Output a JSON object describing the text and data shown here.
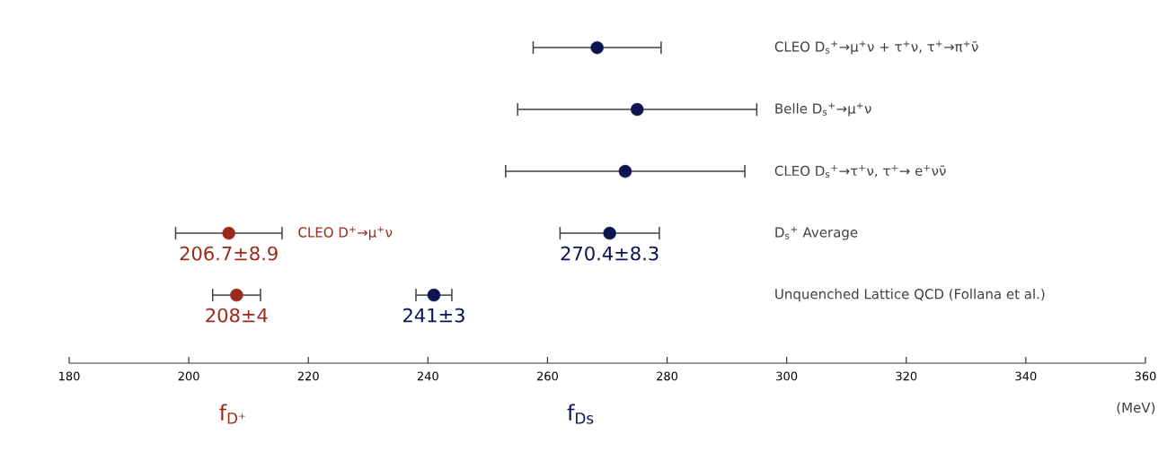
{
  "chart_data": {
    "type": "scatter",
    "orientation": "horizontal",
    "marker": "circle",
    "categories": [
      "CLEO D$_{s}$$^{+}$→μ$^{+}$ν + τ$^{+}$ν, τ$^{+}$→π$^{+}$ν̄",
      "Belle D$_{s}$$^{+}$→μ$^{+}$ν",
      "CLEO D$_{s}$$^{+}$→τ$^{+}$ν, τ$^{+}$→ e$^{+}$νν̄",
      "D$_{s}$$^{+}$ Average",
      "Unquenched Lattice QCD (Follana et al.)"
    ],
    "series": [
      {
        "name": "f$_{D⁺}$",
        "color": "#9a2a1b",
        "values": [
          null,
          null,
          null,
          206.7,
          208
        ],
        "errors": [
          null,
          null,
          null,
          8.9,
          4
        ],
        "value_labels": [
          null,
          null,
          null,
          "206.7±8.9",
          "208±4"
        ]
      },
      {
        "name": "f$_{Ds}$",
        "color": "#0d1450",
        "values": [
          268.3,
          275,
          273,
          270.4,
          241
        ],
        "errors": [
          10.7,
          20,
          20,
          8.3,
          3
        ],
        "value_labels": [
          null,
          null,
          null,
          "270.4±8.3",
          "241±3"
        ]
      }
    ],
    "annotations": [
      "CLEO D$^{+}$→μ$^{+}$ν"
    ],
    "xlabel": "(MeV)",
    "xlim": [
      180,
      360
    ],
    "xticks": [
      180,
      200,
      220,
      240,
      260,
      280,
      300,
      320,
      340,
      360
    ]
  }
}
